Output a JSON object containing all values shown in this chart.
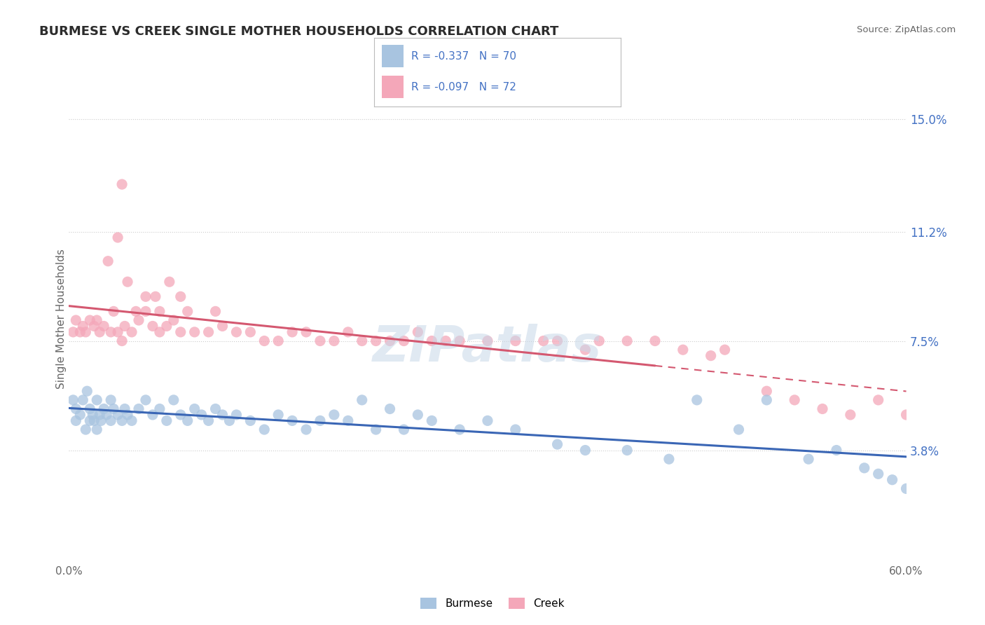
{
  "title": "BURMESE VS CREEK SINGLE MOTHER HOUSEHOLDS CORRELATION CHART",
  "source": "Source: ZipAtlas.com",
  "ylabel": "Single Mother Households",
  "xlim": [
    0.0,
    60.0
  ],
  "ylim": [
    0.0,
    16.5
  ],
  "yticks": [
    3.8,
    7.5,
    11.2,
    15.0
  ],
  "ytick_labels": [
    "3.8%",
    "7.5%",
    "11.2%",
    "15.0%"
  ],
  "burmese_color": "#a8c4e0",
  "creek_color": "#f4a7b9",
  "burmese_line_color": "#3a66b5",
  "creek_line_color": "#d45870",
  "burmese_R": -0.337,
  "burmese_N": 70,
  "creek_R": -0.097,
  "creek_N": 72,
  "legend_R_N_color": "#4472c4",
  "text_color": "#3a3a3a",
  "watermark": "ZIPatlas",
  "background_color": "#ffffff",
  "grid_color": "#cccccc",
  "burmese_scatter_x": [
    0.3,
    0.5,
    0.5,
    0.8,
    1.0,
    1.2,
    1.3,
    1.5,
    1.5,
    1.7,
    1.8,
    2.0,
    2.0,
    2.2,
    2.3,
    2.5,
    2.7,
    3.0,
    3.0,
    3.2,
    3.5,
    3.8,
    4.0,
    4.2,
    4.5,
    5.0,
    5.5,
    6.0,
    6.5,
    7.0,
    7.5,
    8.0,
    8.5,
    9.0,
    9.5,
    10.0,
    10.5,
    11.0,
    11.5,
    12.0,
    13.0,
    14.0,
    15.0,
    16.0,
    17.0,
    18.0,
    19.0,
    20.0,
    21.0,
    22.0,
    23.0,
    24.0,
    25.0,
    26.0,
    28.0,
    30.0,
    32.0,
    35.0,
    37.0,
    40.0,
    43.0,
    45.0,
    48.0,
    50.0,
    53.0,
    55.0,
    57.0,
    58.0,
    59.0,
    60.0
  ],
  "burmese_scatter_y": [
    5.5,
    4.8,
    5.2,
    5.0,
    5.5,
    4.5,
    5.8,
    4.8,
    5.2,
    5.0,
    4.8,
    5.5,
    4.5,
    5.0,
    4.8,
    5.2,
    5.0,
    4.8,
    5.5,
    5.2,
    5.0,
    4.8,
    5.2,
    5.0,
    4.8,
    5.2,
    5.5,
    5.0,
    5.2,
    4.8,
    5.5,
    5.0,
    4.8,
    5.2,
    5.0,
    4.8,
    5.2,
    5.0,
    4.8,
    5.0,
    4.8,
    4.5,
    5.0,
    4.8,
    4.5,
    4.8,
    5.0,
    4.8,
    5.5,
    4.5,
    5.2,
    4.5,
    5.0,
    4.8,
    4.5,
    4.8,
    4.5,
    4.0,
    3.8,
    3.8,
    3.5,
    5.5,
    4.5,
    5.5,
    3.5,
    3.8,
    3.2,
    3.0,
    2.8,
    2.5
  ],
  "creek_scatter_x": [
    0.3,
    0.5,
    0.8,
    1.0,
    1.2,
    1.5,
    1.8,
    2.0,
    2.2,
    2.5,
    2.8,
    3.0,
    3.2,
    3.5,
    3.8,
    4.0,
    4.5,
    5.0,
    5.5,
    6.0,
    6.5,
    7.0,
    7.5,
    8.0,
    9.0,
    10.0,
    11.0,
    12.0,
    13.0,
    14.0,
    15.0,
    16.0,
    17.0,
    18.0,
    19.0,
    20.0,
    21.0,
    22.0,
    23.0,
    24.0,
    25.0,
    26.0,
    27.0,
    28.0,
    30.0,
    32.0,
    34.0,
    35.0,
    37.0,
    38.0,
    40.0,
    42.0,
    44.0,
    46.0,
    47.0,
    50.0,
    52.0,
    54.0,
    56.0,
    58.0,
    60.0,
    3.5,
    4.2,
    5.5,
    6.2,
    7.2,
    8.0,
    3.8,
    4.8,
    6.5,
    8.5,
    10.5
  ],
  "creek_scatter_y": [
    7.8,
    8.2,
    7.8,
    8.0,
    7.8,
    8.2,
    8.0,
    8.2,
    7.8,
    8.0,
    10.2,
    7.8,
    8.5,
    7.8,
    7.5,
    8.0,
    7.8,
    8.2,
    8.5,
    8.0,
    7.8,
    8.0,
    8.2,
    7.8,
    7.8,
    7.8,
    8.0,
    7.8,
    7.8,
    7.5,
    7.5,
    7.8,
    7.8,
    7.5,
    7.5,
    7.8,
    7.5,
    7.5,
    7.5,
    7.5,
    7.8,
    7.5,
    7.5,
    7.5,
    7.5,
    7.5,
    7.5,
    7.5,
    7.2,
    7.5,
    7.5,
    7.5,
    7.2,
    7.0,
    7.2,
    5.8,
    5.5,
    5.2,
    5.0,
    5.5,
    5.0,
    11.0,
    9.5,
    9.0,
    9.0,
    9.5,
    9.0,
    12.8,
    8.5,
    8.5,
    8.5,
    8.5
  ],
  "burmese_line_x": [
    0.0,
    60.0
  ],
  "burmese_line_y": [
    5.5,
    2.5
  ],
  "creek_line_x": [
    0.0,
    60.0
  ],
  "creek_line_y": [
    8.2,
    6.5
  ],
  "creek_line_solid_end": 45.0,
  "creek_line_dashed_start": 45.0
}
